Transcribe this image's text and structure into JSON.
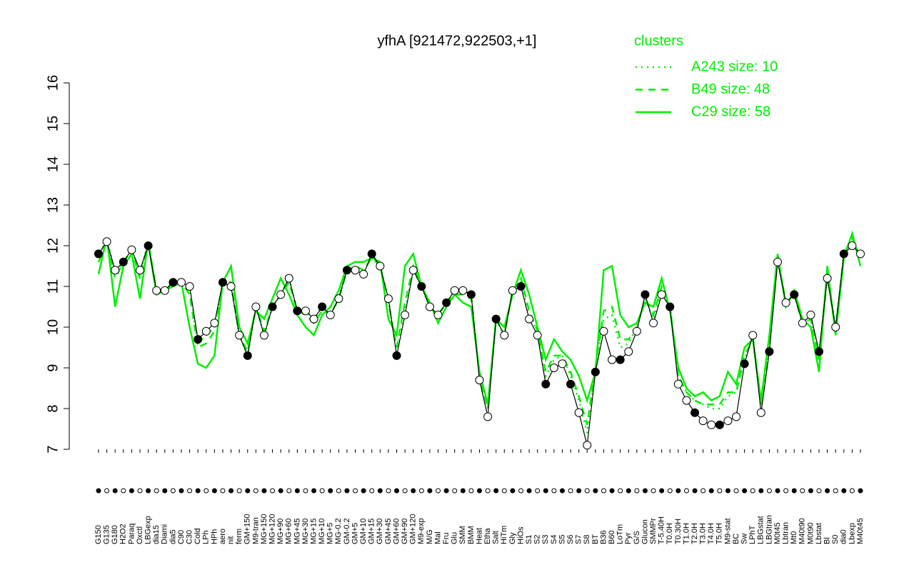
{
  "chart_data": {
    "type": "line",
    "title": "yfhA [921472,922503,+1]",
    "legend_title": "clusters",
    "categories": [
      "G150",
      "G135",
      "G180",
      "H2O2",
      "Paraq",
      "Oxctl",
      "LBGexp",
      "dia15",
      "Diami",
      "dia5",
      "C90",
      "C30",
      "Cold",
      "LPh",
      "HPh",
      "aero",
      "nit",
      "ferm",
      "GM+150",
      "M9-tran",
      "MG+150",
      "MG+120",
      "MG+90",
      "MG+60",
      "MG+45",
      "MG+30",
      "MG+15",
      "MG+10",
      "MG+5",
      "MG-0.2",
      "GM-0.2",
      "GM+5",
      "GM+10",
      "GM+15",
      "GM+30",
      "GM+45",
      "GM+60",
      "GM+90",
      "GM+120",
      "M9-exp",
      "M/G",
      "Mal",
      "Fru",
      "Glu",
      "SMM",
      "BMM",
      "Heat",
      "Etha",
      "Salt",
      "HiTm",
      "Gly",
      "HiOs",
      "S1",
      "S2",
      "S3",
      "S4",
      "S5",
      "S6",
      "S7",
      "S8",
      "BT",
      "B36",
      "B60",
      "LoTm",
      "Pyr",
      "G/S",
      "Glucon",
      "SMMPr",
      "T-5.40H",
      "T0.0H",
      "T0.30H",
      "T1.0H",
      "T2.0H",
      "T3.0H",
      "T4.0H",
      "T5.0H",
      "M9-stat",
      "BC",
      "Sw",
      "LPhT",
      "LBGstat",
      "LBGtran",
      "M0t45",
      "Lbtran",
      "Mt0",
      "M40t90",
      "M0t90",
      "Lbstat",
      "Bl",
      "S0",
      "dia0",
      "Lbexp",
      "M40t45"
    ],
    "values": [
      11.8,
      12.1,
      11.4,
      11.6,
      11.9,
      11.4,
      12.0,
      10.9,
      10.9,
      11.1,
      11.1,
      11.0,
      9.7,
      9.9,
      10.1,
      11.1,
      11.0,
      9.8,
      9.3,
      10.5,
      9.8,
      10.5,
      10.8,
      11.2,
      10.4,
      10.4,
      10.2,
      10.5,
      10.3,
      10.7,
      11.4,
      11.4,
      11.3,
      11.8,
      11.5,
      10.7,
      9.3,
      10.3,
      11.4,
      11.0,
      10.5,
      10.3,
      10.6,
      10.9,
      10.9,
      10.8,
      8.7,
      7.8,
      10.2,
      9.8,
      10.9,
      11.0,
      10.2,
      9.8,
      8.6,
      9.0,
      9.1,
      8.6,
      7.9,
      7.1,
      8.9,
      9.9,
      9.2,
      9.2,
      9.4,
      9.9,
      10.8,
      10.1,
      10.8,
      10.5,
      8.6,
      8.2,
      7.9,
      7.7,
      7.6,
      7.6,
      7.7,
      7.8,
      9.1,
      9.8,
      7.9,
      9.4,
      11.6,
      10.6,
      10.8,
      10.1,
      10.3,
      9.4,
      11.2,
      10.0,
      11.8,
      12.0,
      11.8
    ],
    "color": "#000000",
    "series": [
      {
        "name": "A243 size: 10",
        "color": "#00ee00",
        "style": "dotted",
        "values": [
          11.7,
          12.2,
          11.3,
          11.6,
          11.9,
          11.3,
          12.1,
          10.9,
          10.9,
          11.1,
          11.1,
          10.9,
          9.6,
          9.8,
          10.0,
          11.1,
          11.0,
          9.8,
          9.3,
          10.5,
          9.8,
          10.5,
          10.8,
          11.2,
          10.4,
          10.4,
          10.2,
          10.5,
          10.3,
          10.7,
          11.4,
          11.4,
          11.3,
          11.8,
          11.5,
          10.7,
          9.4,
          10.4,
          11.4,
          11.0,
          10.5,
          10.3,
          10.6,
          10.9,
          10.9,
          10.8,
          8.8,
          8.0,
          10.2,
          9.8,
          10.9,
          11.1,
          10.3,
          9.9,
          8.8,
          9.2,
          9.3,
          8.8,
          8.2,
          7.4,
          9.0,
          10.2,
          10.3,
          9.5,
          9.6,
          10.0,
          10.7,
          10.2,
          10.9,
          10.5,
          8.8,
          8.4,
          8.2,
          8.1,
          8.0,
          8.0,
          8.3,
          8.4,
          9.2,
          9.8,
          8.1,
          9.5,
          11.7,
          10.6,
          10.8,
          10.1,
          10.2,
          9.3,
          11.3,
          10.0,
          11.8,
          12.2,
          11.7
        ]
      },
      {
        "name": "B49 size: 48",
        "color": "#00ee00",
        "style": "dashed",
        "values": [
          11.6,
          12.1,
          11.2,
          11.6,
          11.9,
          11.2,
          12.1,
          10.9,
          10.9,
          11.1,
          11.1,
          10.8,
          9.5,
          9.6,
          9.9,
          11.1,
          11.1,
          9.8,
          9.4,
          10.5,
          9.9,
          10.5,
          10.8,
          11.1,
          10.4,
          10.3,
          10.1,
          10.4,
          10.3,
          10.7,
          11.4,
          11.5,
          11.4,
          11.7,
          11.5,
          10.6,
          9.5,
          10.6,
          11.5,
          11.0,
          10.5,
          10.3,
          10.6,
          10.8,
          10.8,
          10.7,
          8.8,
          8.0,
          10.2,
          9.8,
          10.9,
          11.2,
          10.4,
          9.9,
          8.9,
          9.3,
          9.3,
          8.9,
          8.3,
          7.6,
          9.0,
          10.4,
          10.5,
          9.7,
          9.7,
          10.0,
          10.7,
          10.3,
          11.0,
          10.5,
          8.8,
          8.4,
          8.2,
          8.1,
          8.1,
          8.1,
          8.4,
          8.4,
          9.3,
          9.7,
          8.1,
          9.6,
          11.7,
          10.6,
          10.8,
          10.1,
          10.2,
          9.2,
          11.3,
          9.9,
          11.8,
          12.2,
          11.7
        ]
      },
      {
        "name": "C29 size: 58",
        "color": "#00ee00",
        "style": "solid",
        "values": [
          11.3,
          12.2,
          10.5,
          11.5,
          11.8,
          10.7,
          12.1,
          10.8,
          10.9,
          11.0,
          11.1,
          10.0,
          9.1,
          9.0,
          9.3,
          11.1,
          11.5,
          10.0,
          9.6,
          10.4,
          10.2,
          10.7,
          11.2,
          10.8,
          10.3,
          10.0,
          9.8,
          10.3,
          10.5,
          10.9,
          11.5,
          11.6,
          11.6,
          11.7,
          11.6,
          10.2,
          9.8,
          11.5,
          11.8,
          11.0,
          10.6,
          10.1,
          10.5,
          10.8,
          10.6,
          10.5,
          8.9,
          8.1,
          10.2,
          10.0,
          10.8,
          11.4,
          10.8,
          10.0,
          9.2,
          9.7,
          9.4,
          9.2,
          8.8,
          8.2,
          8.9,
          11.4,
          11.5,
          10.3,
          10.0,
          10.1,
          10.6,
          10.5,
          11.2,
          10.4,
          9.0,
          8.5,
          8.3,
          8.4,
          8.2,
          8.3,
          8.9,
          8.6,
          9.5,
          9.7,
          8.2,
          9.8,
          11.8,
          10.5,
          10.9,
          10.2,
          10.0,
          8.9,
          11.5,
          9.8,
          11.7,
          12.3,
          11.5
        ]
      }
    ],
    "ylim": [
      7,
      16
    ],
    "yticks": [
      7,
      8,
      9,
      10,
      11,
      12,
      13,
      14,
      15,
      16
    ],
    "legend_position": "top-right"
  }
}
